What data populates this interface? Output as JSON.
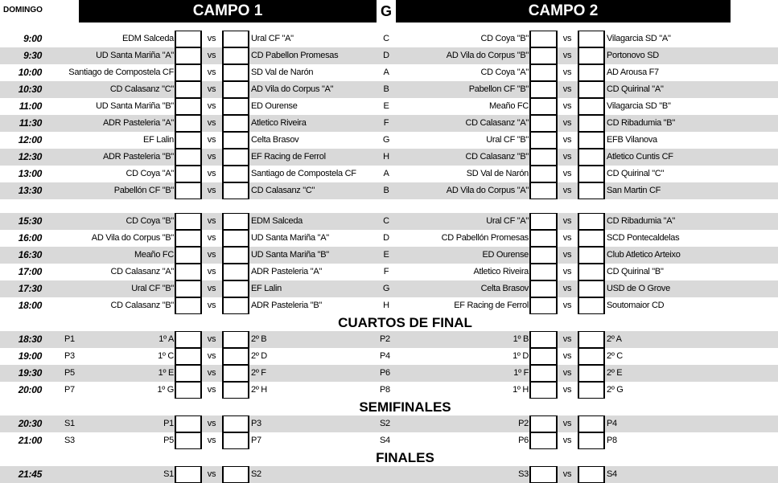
{
  "header": {
    "day": "DOMINGO",
    "campo1": "CAMPO 1",
    "group_col": "G",
    "campo2": "CAMPO 2"
  },
  "vs_label": "vs",
  "blocks": [
    {
      "heading": "",
      "rows": [
        {
          "time": "9:00",
          "c1_home": "EDM Salceda",
          "c1_away": "Ural CF \"A\"",
          "group": "C",
          "c2_home": "CD Coya \"B\"",
          "c2_away": "Vilagarcia SD \"A\""
        },
        {
          "time": "9:30",
          "c1_home": "UD Santa Mariña \"A\"",
          "c1_away": "CD Pabellon Promesas",
          "group": "D",
          "c2_home": "AD Vila do Corpus \"B\"",
          "c2_away": "Portonovo SD"
        },
        {
          "time": "10:00",
          "c1_home": "Santiago de Compostela CF",
          "c1_away": "SD Val de Narón",
          "group": "A",
          "c2_home": "CD Coya \"A\"",
          "c2_away": "AD Arousa F7"
        },
        {
          "time": "10:30",
          "c1_home": "CD Calasanz \"C\"",
          "c1_away": "AD Vila do Corpus \"A\"",
          "group": "B",
          "c2_home": "Pabellon CF \"B\"",
          "c2_away": "CD Quirinal \"A\""
        },
        {
          "time": "11:00",
          "c1_home": "UD Santa Mariña \"B\"",
          "c1_away": "ED Ourense",
          "group": "E",
          "c2_home": "Meaño FC",
          "c2_away": "Vilagarcia SD \"B\""
        },
        {
          "time": "11:30",
          "c1_home": "ADR Pasteleria \"A\"",
          "c1_away": "Atletico Riveira",
          "group": "F",
          "c2_home": "CD Calasanz \"A\"",
          "c2_away": "CD Ribadumia \"B\""
        },
        {
          "time": "12:00",
          "c1_home": "EF Lalin",
          "c1_away": "Celta Brasov",
          "group": "G",
          "c2_home": "Ural CF \"B\"",
          "c2_away": "EFB Vilanova"
        },
        {
          "time": "12:30",
          "c1_home": "ADR Pasteleria \"B\"",
          "c1_away": "EF Racing de Ferrol",
          "group": "H",
          "c2_home": "CD Calasanz \"B\"",
          "c2_away": "Atletico Cuntis CF"
        },
        {
          "time": "13:00",
          "c1_home": "CD Coya \"A\"",
          "c1_away": "Santiago de Compostela CF",
          "group": "A",
          "c2_home": "SD Val de Narón",
          "c2_away": "CD Quirinal \"C\""
        },
        {
          "time": "13:30",
          "c1_home": "Pabellón CF \"B\"",
          "c1_away": "CD Calasanz \"C\"",
          "group": "B",
          "c2_home": "AD Vila do Corpus \"A\"",
          "c2_away": "San Martin CF"
        }
      ]
    },
    {
      "heading": "",
      "rows": [
        {
          "time": "15:30",
          "c1_home": "CD Coya \"B\"",
          "c1_away": "EDM Salceda",
          "group": "C",
          "c2_home": "Ural CF \"A\"",
          "c2_away": "CD Ribadumia \"A\""
        },
        {
          "time": "16:00",
          "c1_home": "AD Vila do Corpus \"B\"",
          "c1_away": "UD Santa Mariña \"A\"",
          "group": "D",
          "c2_home": "CD Pabellón Promesas",
          "c2_away": "SCD Pontecaldelas"
        },
        {
          "time": "16:30",
          "c1_home": "Meaño FC",
          "c1_away": "UD Santa Mariña \"B\"",
          "group": "E",
          "c2_home": "ED Ourense",
          "c2_away": "Club Atletico Arteixo"
        },
        {
          "time": "17:00",
          "c1_home": "CD Calasanz \"A\"",
          "c1_away": "ADR Pasteleria \"A\"",
          "group": "F",
          "c2_home": "Atletico Riveira",
          "c2_away": "CD Quirinal \"B\""
        },
        {
          "time": "17:30",
          "c1_home": "Ural CF \"B\"",
          "c1_away": "EF Lalin",
          "group": "G",
          "c2_home": "Celta Brasov",
          "c2_away": "USD de O Grove"
        },
        {
          "time": "18:00",
          "c1_home": "CD Calasanz \"B\"",
          "c1_away": "ADR Pasteleria \"B\"",
          "group": "H",
          "c2_home": "EF Racing de Ferrol",
          "c2_away": "Soutomaior CD"
        }
      ]
    },
    {
      "heading": "CUARTOS DE FINAL",
      "rows": [
        {
          "time": "18:30",
          "code1": "P1",
          "c1_home": "1º A",
          "c1_away": "2º B",
          "code2": "P2",
          "c2_home": "1º B",
          "c2_away": "2º A"
        },
        {
          "time": "19:00",
          "code1": "P3",
          "c1_home": "1º C",
          "c1_away": "2º D",
          "code2": "P4",
          "c2_home": "1º D",
          "c2_away": "2º C"
        },
        {
          "time": "19:30",
          "code1": "P5",
          "c1_home": "1º E",
          "c1_away": "2º F",
          "code2": "P6",
          "c2_home": "1º F",
          "c2_away": "2º E"
        },
        {
          "time": "20:00",
          "code1": "P7",
          "c1_home": "1º G",
          "c1_away": "2º H",
          "code2": "P8",
          "c2_home": "1º H",
          "c2_away": "2º G"
        }
      ]
    },
    {
      "heading": "SEMIFINALES",
      "rows": [
        {
          "time": "20:30",
          "code1": "S1",
          "c1_home": "P1",
          "c1_away": "P3",
          "code2": "S2",
          "c2_home": "P2",
          "c2_away": "P4"
        },
        {
          "time": "21:00",
          "code1": "S3",
          "c1_home": "P5",
          "c1_away": "P7",
          "code2": "S4",
          "c2_home": "P6",
          "c2_away": "P8"
        }
      ]
    },
    {
      "heading": "FINALES",
      "rows": [
        {
          "time": "21:45",
          "c1_home": "S1",
          "c1_away": "S2",
          "c2_home": "S3",
          "c2_away": "S4"
        }
      ]
    }
  ]
}
